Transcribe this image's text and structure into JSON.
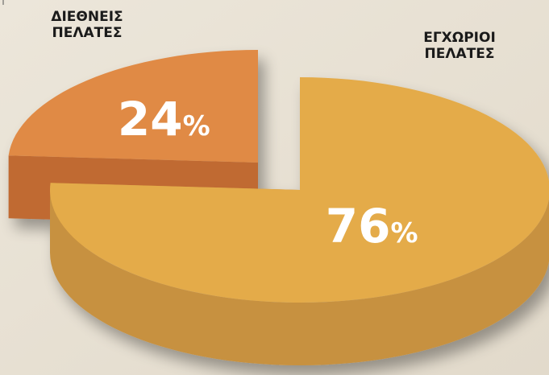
{
  "chart_data": {
    "type": "pie",
    "categories": [
      "ΔΙΕΘΝΕΙΣ ΠΕΛΑΤΕΣ",
      "ΕΓΧΩΡΙΟΙ ΠΕΛΑΤΕΣ"
    ],
    "values": [
      24,
      76
    ],
    "value_suffix": "%",
    "three_d": true,
    "exploded": "ΔΙΕΘΝΕΙΣ ΠΕΛΑΤΕΣ",
    "colors": {
      "ΔΙΕΘΝΕΙΣ ΠΕΛΑΤΕΣ": {
        "top": "#e08a45",
        "side": "#c06a30"
      },
      "ΕΓΧΩΡΙΟΙ ΠΕΛΑΤΕΣ": {
        "top": "#e4ab4a",
        "side": "#c79140"
      }
    },
    "background": "#e8e1d4"
  }
}
